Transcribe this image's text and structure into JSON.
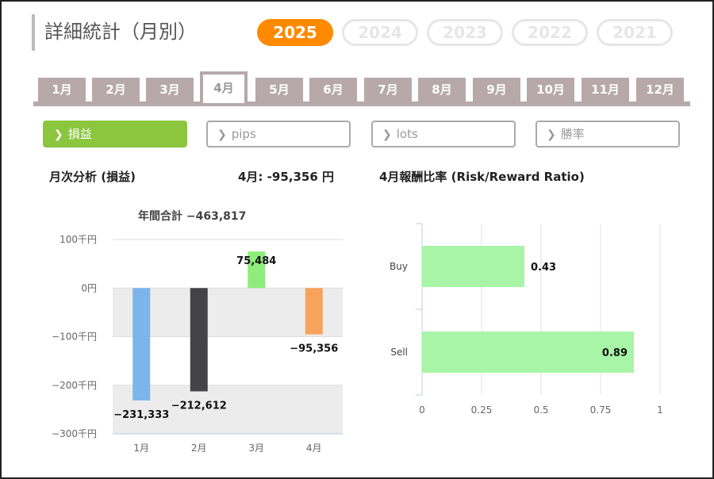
{
  "page_title": "詳細統計（月別）",
  "years": [
    {
      "label": "2025",
      "active": true
    },
    {
      "label": "2024",
      "active": false
    },
    {
      "label": "2023",
      "active": false
    },
    {
      "label": "2022",
      "active": false
    },
    {
      "label": "2021",
      "active": false
    }
  ],
  "months": [
    "1月",
    "2月",
    "3月",
    "4月",
    "5月",
    "6月",
    "7月",
    "8月",
    "9月",
    "10月",
    "11月",
    "12月"
  ],
  "active_month": "4月",
  "subtabs": [
    {
      "label": "損益",
      "active": true
    },
    {
      "label": "pips",
      "active": false
    },
    {
      "label": "lots",
      "active": false
    },
    {
      "label": "勝率",
      "active": false
    }
  ],
  "monthly_header": "月次分析 (損益)",
  "month_summary": "4月:  -95,356 円",
  "ratio_header": "4月報酬比率 (Risk/Reward Ratio)",
  "annual_total": "年間合計 −463,817",
  "colors": {
    "accent": "#ff8a00",
    "active_tab": "#8cc63f",
    "month_tab": "#b7a9a9"
  },
  "chart_data": [
    {
      "type": "bar",
      "categories": [
        "1月",
        "2月",
        "3月",
        "4月"
      ],
      "values": [
        -231333,
        -212612,
        75484,
        -95356
      ],
      "value_labels": [
        "−231,333",
        "−212,612",
        "75,484",
        "−95,356"
      ],
      "bar_colors": [
        "#7cb5ec",
        "#434348",
        "#90ed7d",
        "#f7a35c"
      ],
      "ylim": [
        -300000,
        100000
      ],
      "yticks": [
        100000,
        0,
        -100000,
        -200000,
        -300000
      ],
      "ytick_labels": [
        "100千円",
        "0円",
        "−100千円",
        "−200千円",
        "−300千円"
      ],
      "grid": true
    },
    {
      "type": "bar",
      "orientation": "horizontal",
      "categories": [
        "Buy",
        "Sell"
      ],
      "values": [
        0.43,
        0.89
      ],
      "value_labels": [
        "0.43",
        "0.89"
      ],
      "bar_color": "#a8f5a8",
      "xlim": [
        0,
        1
      ],
      "xticks": [
        0,
        0.25,
        0.5,
        0.75,
        1
      ],
      "xtick_labels": [
        "0",
        "0.25",
        "0.5",
        "0.75",
        "1"
      ],
      "grid": true
    }
  ]
}
